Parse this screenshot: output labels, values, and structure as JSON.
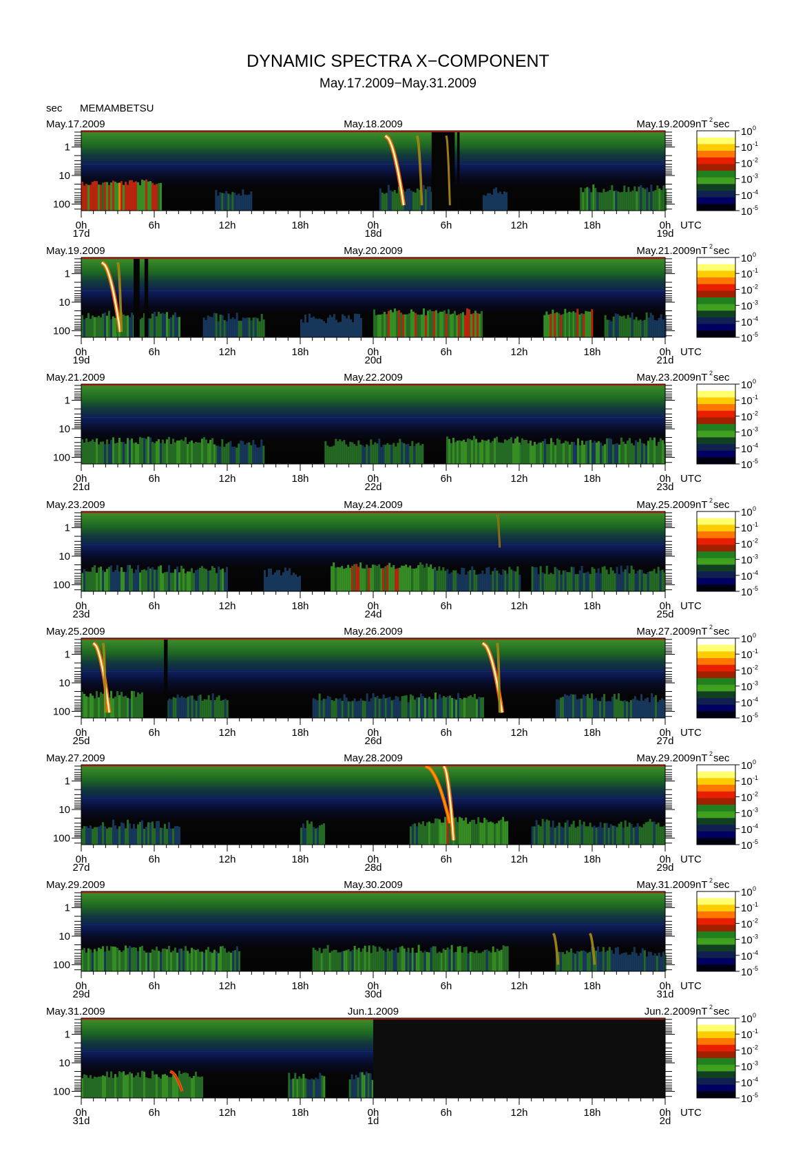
{
  "header": {
    "title": "DYNAMIC SPECTRA X−COMPONENT",
    "period": "May.17.2009−May.31.2009",
    "y_unit": "sec",
    "station": "MEMAMBETSU"
  },
  "colorbar": {
    "unit_prefix": "nT",
    "unit_exp": "2",
    "unit_suffix": "sec",
    "ticks": [
      {
        "base": "10",
        "exp": "0"
      },
      {
        "base": "10",
        "exp": "-1"
      },
      {
        "base": "10",
        "exp": "-2"
      },
      {
        "base": "10",
        "exp": "-3"
      },
      {
        "base": "10",
        "exp": "-4"
      },
      {
        "base": "10",
        "exp": "-5"
      }
    ],
    "colors": [
      "#ffffff",
      "#ffff70",
      "#ffcc00",
      "#ff7700",
      "#e82000",
      "#a02000",
      "#208020",
      "#40a020",
      "#104020",
      "#102050",
      "#000060",
      "#000010"
    ]
  },
  "x_tick_labels": [
    "0h",
    "6h",
    "12h",
    "18h",
    "0h",
    "6h",
    "12h",
    "18h",
    "0h"
  ],
  "utc_label": "UTC",
  "y_tick_labels": [
    "1",
    "10",
    "100"
  ],
  "chart_data": [
    {
      "type": "heatmap",
      "date_left": "May.17.2009",
      "date_mid": "May.18.2009",
      "date_right": "May.19.2009",
      "day_labels": [
        "17d",
        "18d",
        "19d"
      ],
      "ylabel": "sec",
      "y_range_sec": [
        0.3,
        200
      ],
      "y_scale": "log",
      "x_range_hours": [
        0,
        48
      ],
      "activity": [
        {
          "start_h": 0,
          "end_h": 6.5,
          "level": 0.75
        },
        {
          "start_h": 11,
          "end_h": 14,
          "level": 0.35
        },
        {
          "start_h": 24.5,
          "end_h": 30,
          "level": 0.45
        },
        {
          "start_h": 33,
          "end_h": 35,
          "level": 0.3
        },
        {
          "start_h": 41,
          "end_h": 48,
          "level": 0.5
        }
      ],
      "events": [
        {
          "start_h": 25.0,
          "end_h": 26.5,
          "period_start_sec": 0.4,
          "period_end_sec": 110,
          "level": 1.0
        },
        {
          "start_h": 27.6,
          "end_h": 28.0,
          "period_start_sec": 0.4,
          "period_end_sec": 110,
          "level": 0.6
        },
        {
          "start_h": 30.0,
          "end_h": 30.3,
          "period_start_sec": 0.4,
          "period_end_sec": 110,
          "level": 0.5
        }
      ],
      "gaps": [
        {
          "start_h": 28.8,
          "end_h": 30.7
        },
        {
          "start_h": 30.9,
          "end_h": 31.1
        }
      ],
      "no_data_after_h": null
    },
    {
      "type": "heatmap",
      "date_left": "May.19.2009",
      "date_mid": "May.20.2009",
      "date_right": "May.21.2009",
      "day_labels": [
        "19d",
        "20d",
        "21d"
      ],
      "ylabel": "sec",
      "y_range_sec": [
        0.3,
        200
      ],
      "y_scale": "log",
      "x_range_hours": [
        0,
        48
      ],
      "activity": [
        {
          "start_h": 0,
          "end_h": 8,
          "level": 0.5
        },
        {
          "start_h": 10,
          "end_h": 15,
          "level": 0.4
        },
        {
          "start_h": 18,
          "end_h": 23,
          "level": 0.3
        },
        {
          "start_h": 24,
          "end_h": 33,
          "level": 0.65
        },
        {
          "start_h": 38,
          "end_h": 42,
          "level": 0.65
        },
        {
          "start_h": 43,
          "end_h": 48,
          "level": 0.4
        }
      ],
      "events": [
        {
          "start_h": 1.7,
          "end_h": 3.2,
          "period_start_sec": 0.4,
          "period_end_sec": 110,
          "level": 1.0
        },
        {
          "start_h": 3.0,
          "end_h": 3.3,
          "period_start_sec": 0.4,
          "period_end_sec": 110,
          "level": 0.6
        }
      ],
      "gaps": [
        {
          "start_h": 4.3,
          "end_h": 4.8
        },
        {
          "start_h": 5.2,
          "end_h": 5.5
        }
      ],
      "no_data_after_h": null
    },
    {
      "type": "heatmap",
      "date_left": "May.21.2009",
      "date_mid": "May.22.2009",
      "date_right": "May.23.2009",
      "day_labels": [
        "21d",
        "22d",
        "23d"
      ],
      "ylabel": "sec",
      "y_range_sec": [
        0.3,
        200
      ],
      "y_scale": "log",
      "x_range_hours": [
        0,
        48
      ],
      "activity": [
        {
          "start_h": 0,
          "end_h": 11,
          "level": 0.55
        },
        {
          "start_h": 11,
          "end_h": 15,
          "level": 0.4
        },
        {
          "start_h": 20,
          "end_h": 28,
          "level": 0.45
        },
        {
          "start_h": 30,
          "end_h": 36,
          "level": 0.6
        },
        {
          "start_h": 36,
          "end_h": 48,
          "level": 0.5
        }
      ],
      "events": [],
      "gaps": [],
      "no_data_after_h": null
    },
    {
      "type": "heatmap",
      "date_left": "May.23.2009",
      "date_mid": "May.24.2009",
      "date_right": "May.25.2009",
      "day_labels": [
        "23d",
        "24d",
        "25d"
      ],
      "ylabel": "sec",
      "y_range_sec": [
        0.3,
        200
      ],
      "y_scale": "log",
      "x_range_hours": [
        0,
        48
      ],
      "activity": [
        {
          "start_h": 0,
          "end_h": 12,
          "level": 0.5
        },
        {
          "start_h": 15,
          "end_h": 18,
          "level": 0.3
        },
        {
          "start_h": 20.5,
          "end_h": 29,
          "level": 0.65
        },
        {
          "start_h": 29,
          "end_h": 36,
          "level": 0.4
        },
        {
          "start_h": 37,
          "end_h": 48,
          "level": 0.45
        }
      ],
      "events": [
        {
          "start_h": 34.2,
          "end_h": 34.4,
          "period_start_sec": 0.35,
          "period_end_sec": 5,
          "level": 0.45
        }
      ],
      "gaps": [],
      "no_data_after_h": null
    },
    {
      "type": "heatmap",
      "date_left": "May.25.2009",
      "date_mid": "May.26.2009",
      "date_right": "May.27.2009",
      "day_labels": [
        "25d",
        "26d",
        "27d"
      ],
      "ylabel": "sec",
      "y_range_sec": [
        0.3,
        200
      ],
      "y_scale": "log",
      "x_range_hours": [
        0,
        48
      ],
      "activity": [
        {
          "start_h": 0,
          "end_h": 5,
          "level": 0.55
        },
        {
          "start_h": 7,
          "end_h": 12,
          "level": 0.45
        },
        {
          "start_h": 19,
          "end_h": 27,
          "level": 0.4
        },
        {
          "start_h": 27,
          "end_h": 33,
          "level": 0.5
        },
        {
          "start_h": 39,
          "end_h": 48,
          "level": 0.4
        }
      ],
      "events": [
        {
          "start_h": 1.0,
          "end_h": 2.3,
          "period_start_sec": 0.4,
          "period_end_sec": 110,
          "level": 1.0
        },
        {
          "start_h": 1.8,
          "end_h": 2.0,
          "period_start_sec": 0.4,
          "period_end_sec": 110,
          "level": 0.6
        },
        {
          "start_h": 33.0,
          "end_h": 34.6,
          "period_start_sec": 0.4,
          "period_end_sec": 110,
          "level": 1.0
        },
        {
          "start_h": 34.2,
          "end_h": 34.4,
          "period_start_sec": 0.4,
          "period_end_sec": 110,
          "level": 0.6
        }
      ],
      "gaps": [
        {
          "start_h": 6.8,
          "end_h": 7.1
        }
      ],
      "no_data_after_h": null
    },
    {
      "type": "heatmap",
      "date_left": "May.27.2009",
      "date_mid": "May.28.2009",
      "date_right": "May.29.2009",
      "day_labels": [
        "27d",
        "28d",
        "29d"
      ],
      "ylabel": "sec",
      "y_range_sec": [
        0.3,
        200
      ],
      "y_scale": "log",
      "x_range_hours": [
        0,
        48
      ],
      "activity": [
        {
          "start_h": 0,
          "end_h": 8,
          "level": 0.4
        },
        {
          "start_h": 18,
          "end_h": 20,
          "level": 0.4
        },
        {
          "start_h": 27,
          "end_h": 30,
          "level": 0.5
        },
        {
          "start_h": 29.5,
          "end_h": 35,
          "level": 0.6
        },
        {
          "start_h": 37,
          "end_h": 48,
          "level": 0.45
        }
      ],
      "events": [
        {
          "start_h": 28.3,
          "end_h": 30.3,
          "period_start_sec": 0.3,
          "period_end_sec": 30,
          "level": 0.85
        },
        {
          "start_h": 29.8,
          "end_h": 30.6,
          "period_start_sec": 0.3,
          "period_end_sec": 120,
          "level": 1.0
        }
      ],
      "gaps": [],
      "no_data_after_h": null
    },
    {
      "type": "heatmap",
      "date_left": "May.29.2009",
      "date_mid": "May.30.2009",
      "date_right": "May.31.2009",
      "day_labels": [
        "29d",
        "30d",
        "31d"
      ],
      "ylabel": "sec",
      "y_range_sec": [
        0.3,
        200
      ],
      "y_scale": "log",
      "x_range_hours": [
        0,
        48
      ],
      "activity": [
        {
          "start_h": 0,
          "end_h": 13,
          "level": 0.5
        },
        {
          "start_h": 19,
          "end_h": 35,
          "level": 0.5
        },
        {
          "start_h": 39,
          "end_h": 42.5,
          "level": 0.45
        },
        {
          "start_h": 42.5,
          "end_h": 48,
          "level": 0.35
        }
      ],
      "events": [
        {
          "start_h": 38.8,
          "end_h": 39.2,
          "period_start_sec": 8,
          "period_end_sec": 100,
          "level": 0.6
        },
        {
          "start_h": 41.8,
          "end_h": 42.2,
          "period_start_sec": 8,
          "period_end_sec": 100,
          "level": 0.6
        }
      ],
      "gaps": [],
      "no_data_after_h": null
    },
    {
      "type": "heatmap",
      "date_left": "May.31.2009",
      "date_mid": "Jun.1.2009",
      "date_right": "Jun.2.2009",
      "day_labels": [
        "31d",
        "1d",
        "2d"
      ],
      "ylabel": "sec",
      "y_range_sec": [
        0.3,
        200
      ],
      "y_scale": "log",
      "x_range_hours": [
        0,
        48
      ],
      "activity": [
        {
          "start_h": 0,
          "end_h": 10,
          "level": 0.55
        },
        {
          "start_h": 17,
          "end_h": 20,
          "level": 0.5
        },
        {
          "start_h": 22,
          "end_h": 24,
          "level": 0.5
        }
      ],
      "events": [
        {
          "start_h": 7.3,
          "end_h": 8.3,
          "period_start_sec": 20,
          "period_end_sec": 100,
          "level": 0.7
        }
      ],
      "gaps": [],
      "no_data_after_h": 24
    }
  ]
}
